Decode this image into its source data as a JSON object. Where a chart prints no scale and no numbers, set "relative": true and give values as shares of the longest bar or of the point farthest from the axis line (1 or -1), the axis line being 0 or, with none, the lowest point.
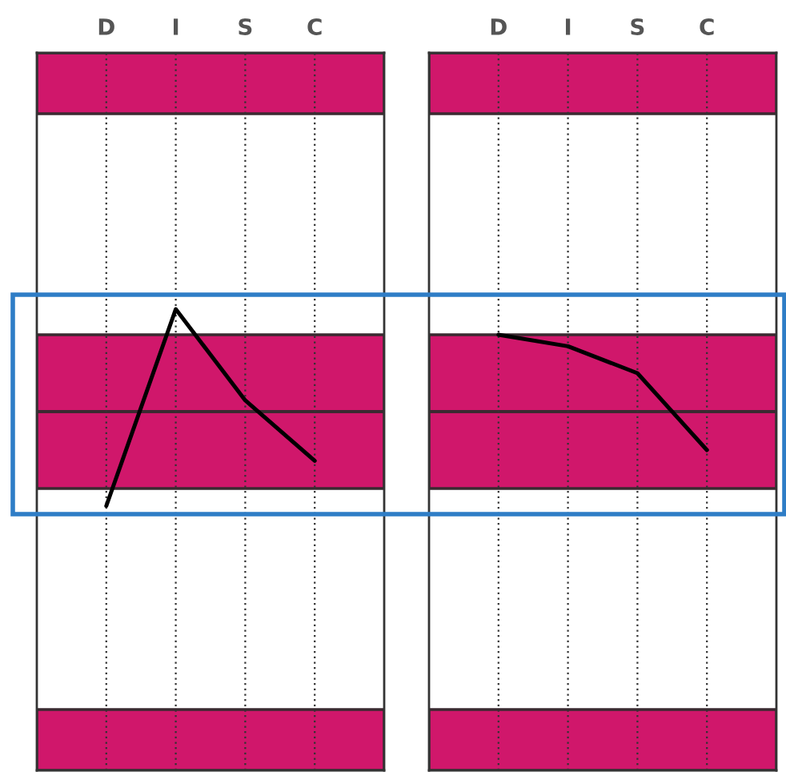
{
  "chart_data": [
    {
      "type": "line",
      "relative": true,
      "categories": [
        "D",
        "I",
        "S",
        "C"
      ],
      "tick_labels": "x",
      "grid": "x",
      "line_style": "solid",
      "marker": "none",
      "series": [
        {
          "color": "#000000",
          "values": [
            -0.92,
            1,
            0.11,
            -0.48
          ]
        }
      ],
      "bands": [
        {
          "axis": "y",
          "from": 0,
          "to": 0.75,
          "color": "#d0176b"
        },
        {
          "axis": "y",
          "from": -0.75,
          "to": 0,
          "color": "#d0176b"
        }
      ]
    },
    {
      "type": "line",
      "relative": true,
      "categories": [
        "D",
        "I",
        "S",
        "C"
      ],
      "tick_labels": "x",
      "grid": "x",
      "line_style": "solid",
      "marker": "none",
      "series": [
        {
          "color": "#000000",
          "values": [
            1,
            0.85,
            0.5,
            -0.5
          ]
        }
      ],
      "bands": [
        {
          "axis": "y",
          "from": 0,
          "to": 1.0,
          "color": "#d0176b"
        },
        {
          "axis": "y",
          "from": -1.0,
          "to": 0,
          "color": "#d0176b"
        }
      ]
    }
  ]
}
